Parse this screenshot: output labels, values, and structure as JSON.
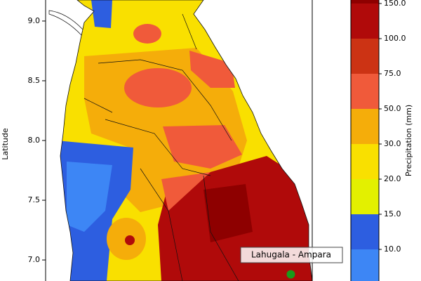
{
  "map": {
    "type": "choropleth",
    "ylabel": "Latitude",
    "ylim": [
      6.824,
      9.176
    ],
    "xlim": [
      79.5,
      81.74
    ],
    "yticks": [
      {
        "value": 9,
        "label": "9.0"
      },
      {
        "value": 8.5,
        "label": "8.5"
      },
      {
        "value": 8,
        "label": "8.0"
      },
      {
        "value": 7.5,
        "label": "7.5"
      },
      {
        "value": 7,
        "label": "7.0"
      }
    ],
    "marker": {
      "label": "Lahugala - Ampara",
      "lat": 6.88,
      "lon": 81.56,
      "color": "#1a9a1a"
    },
    "colorbar": {
      "label": "Precipitation (mm)",
      "bounds": [
        {
          "value": 150,
          "label": "150.0"
        },
        {
          "value": 100,
          "label": "100.0"
        },
        {
          "value": 75,
          "label": "75.0"
        },
        {
          "value": 50,
          "label": "50.0"
        },
        {
          "value": 30,
          "label": "30.0"
        },
        {
          "value": 20,
          "label": "20.0"
        },
        {
          "value": 15,
          "label": "15.0"
        },
        {
          "value": 10,
          "label": "10.0"
        }
      ],
      "colors": [
        "#8e0000",
        "#b00a0a",
        "#cc3314",
        "#f05a3a",
        "#f5ad0a",
        "#f9e000",
        "#e3f000",
        "#2d5ee0",
        "#3d86f5"
      ]
    }
  }
}
